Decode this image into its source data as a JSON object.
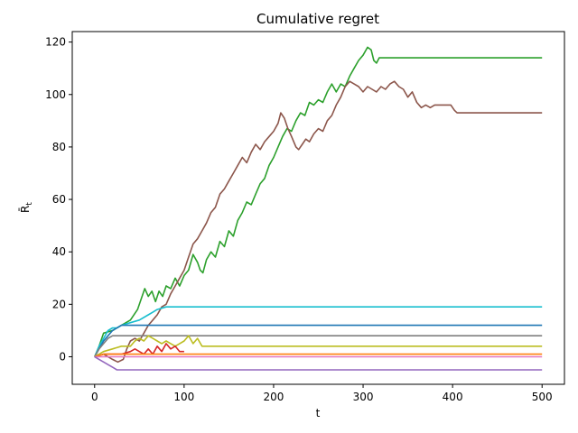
{
  "chart_data": {
    "type": "line",
    "title": "Cumulative regret",
    "xlabel": "t",
    "ylabel": "R̄",
    "ylabel_sub": "t",
    "xlim": [
      -25,
      525
    ],
    "ylim": [
      -10.5,
      124
    ],
    "xticks": [
      0,
      100,
      200,
      300,
      400,
      500
    ],
    "yticks": [
      0,
      20,
      40,
      60,
      80,
      100,
      120
    ],
    "grid": false,
    "series": [
      {
        "color": "#2ca02c",
        "points": [
          [
            0,
            0
          ],
          [
            5,
            4
          ],
          [
            10,
            9
          ],
          [
            20,
            10
          ],
          [
            30,
            12
          ],
          [
            40,
            14
          ],
          [
            48,
            18
          ],
          [
            52,
            22
          ],
          [
            56,
            26
          ],
          [
            60,
            23
          ],
          [
            64,
            25
          ],
          [
            68,
            21
          ],
          [
            72,
            25
          ],
          [
            76,
            23
          ],
          [
            80,
            27
          ],
          [
            85,
            26
          ],
          [
            90,
            30
          ],
          [
            95,
            27
          ],
          [
            100,
            31
          ],
          [
            105,
            33
          ],
          [
            110,
            39
          ],
          [
            115,
            36
          ],
          [
            118,
            33
          ],
          [
            121,
            32
          ],
          [
            125,
            37
          ],
          [
            130,
            40
          ],
          [
            135,
            38
          ],
          [
            140,
            44
          ],
          [
            145,
            42
          ],
          [
            150,
            48
          ],
          [
            155,
            46
          ],
          [
            160,
            52
          ],
          [
            165,
            55
          ],
          [
            170,
            59
          ],
          [
            175,
            58
          ],
          [
            180,
            62
          ],
          [
            185,
            66
          ],
          [
            190,
            68
          ],
          [
            195,
            73
          ],
          [
            200,
            76
          ],
          [
            205,
            80
          ],
          [
            210,
            84
          ],
          [
            215,
            87
          ],
          [
            220,
            86
          ],
          [
            225,
            90
          ],
          [
            230,
            93
          ],
          [
            235,
            92
          ],
          [
            240,
            97
          ],
          [
            245,
            96
          ],
          [
            250,
            98
          ],
          [
            255,
            97
          ],
          [
            260,
            101
          ],
          [
            265,
            104
          ],
          [
            270,
            101
          ],
          [
            275,
            104
          ],
          [
            280,
            103
          ],
          [
            285,
            107
          ],
          [
            290,
            110
          ],
          [
            295,
            113
          ],
          [
            300,
            115
          ],
          [
            305,
            118
          ],
          [
            309,
            117
          ],
          [
            312,
            113
          ],
          [
            315,
            112
          ],
          [
            318,
            114
          ],
          [
            330,
            114
          ],
          [
            400,
            114
          ],
          [
            500,
            114
          ]
        ]
      },
      {
        "color": "#8c564b",
        "points": [
          [
            0,
            0
          ],
          [
            10,
            1
          ],
          [
            20,
            -1
          ],
          [
            26,
            -2
          ],
          [
            32,
            -1
          ],
          [
            36,
            3
          ],
          [
            40,
            6
          ],
          [
            45,
            7
          ],
          [
            50,
            6
          ],
          [
            55,
            9
          ],
          [
            60,
            12
          ],
          [
            65,
            14
          ],
          [
            70,
            16
          ],
          [
            75,
            19
          ],
          [
            80,
            20
          ],
          [
            85,
            24
          ],
          [
            90,
            27
          ],
          [
            95,
            30
          ],
          [
            100,
            33
          ],
          [
            105,
            38
          ],
          [
            110,
            43
          ],
          [
            115,
            45
          ],
          [
            120,
            48
          ],
          [
            125,
            51
          ],
          [
            130,
            55
          ],
          [
            135,
            57
          ],
          [
            140,
            62
          ],
          [
            145,
            64
          ],
          [
            150,
            67
          ],
          [
            155,
            70
          ],
          [
            160,
            73
          ],
          [
            165,
            76
          ],
          [
            170,
            74
          ],
          [
            175,
            78
          ],
          [
            180,
            81
          ],
          [
            185,
            79
          ],
          [
            190,
            82
          ],
          [
            195,
            84
          ],
          [
            200,
            86
          ],
          [
            205,
            89
          ],
          [
            208,
            93
          ],
          [
            212,
            91
          ],
          [
            216,
            87
          ],
          [
            220,
            84
          ],
          [
            225,
            80
          ],
          [
            228,
            79
          ],
          [
            232,
            81
          ],
          [
            236,
            83
          ],
          [
            240,
            82
          ],
          [
            245,
            85
          ],
          [
            250,
            87
          ],
          [
            255,
            86
          ],
          [
            260,
            90
          ],
          [
            265,
            92
          ],
          [
            270,
            96
          ],
          [
            275,
            99
          ],
          [
            280,
            103
          ],
          [
            285,
            105
          ],
          [
            290,
            104
          ],
          [
            295,
            103
          ],
          [
            300,
            101
          ],
          [
            305,
            103
          ],
          [
            310,
            102
          ],
          [
            315,
            101
          ],
          [
            320,
            103
          ],
          [
            325,
            102
          ],
          [
            330,
            104
          ],
          [
            335,
            105
          ],
          [
            340,
            103
          ],
          [
            345,
            102
          ],
          [
            350,
            99
          ],
          [
            355,
            101
          ],
          [
            360,
            97
          ],
          [
            365,
            95
          ],
          [
            370,
            96
          ],
          [
            375,
            95
          ],
          [
            380,
            96
          ],
          [
            390,
            96
          ],
          [
            398,
            96
          ],
          [
            402,
            94
          ],
          [
            405,
            93
          ],
          [
            410,
            93
          ],
          [
            450,
            93
          ],
          [
            500,
            93
          ]
        ]
      },
      {
        "color": "#17becf",
        "points": [
          [
            0,
            0
          ],
          [
            5,
            4
          ],
          [
            10,
            7
          ],
          [
            15,
            10
          ],
          [
            20,
            11
          ],
          [
            25,
            11
          ],
          [
            30,
            12
          ],
          [
            40,
            13
          ],
          [
            50,
            14
          ],
          [
            60,
            16
          ],
          [
            65,
            17
          ],
          [
            70,
            18
          ],
          [
            80,
            19
          ],
          [
            100,
            19
          ],
          [
            300,
            19
          ],
          [
            500,
            19
          ]
        ]
      },
      {
        "color": "#1f77b4",
        "points": [
          [
            0,
            0
          ],
          [
            5,
            3
          ],
          [
            10,
            6
          ],
          [
            15,
            8
          ],
          [
            20,
            10
          ],
          [
            30,
            12
          ],
          [
            60,
            12
          ],
          [
            500,
            12
          ]
        ]
      },
      {
        "color": "#7f7f7f",
        "points": [
          [
            0,
            0
          ],
          [
            5,
            3
          ],
          [
            10,
            5
          ],
          [
            15,
            7
          ],
          [
            20,
            8
          ],
          [
            500,
            8
          ]
        ]
      },
      {
        "color": "#bcbd22",
        "points": [
          [
            0,
            0
          ],
          [
            10,
            2
          ],
          [
            20,
            3
          ],
          [
            30,
            4
          ],
          [
            40,
            4
          ],
          [
            45,
            6
          ],
          [
            50,
            7
          ],
          [
            55,
            6
          ],
          [
            60,
            8
          ],
          [
            65,
            7
          ],
          [
            70,
            6
          ],
          [
            75,
            5
          ],
          [
            80,
            6
          ],
          [
            85,
            5
          ],
          [
            90,
            4
          ],
          [
            95,
            5
          ],
          [
            100,
            6
          ],
          [
            105,
            8
          ],
          [
            110,
            5
          ],
          [
            115,
            7
          ],
          [
            120,
            4
          ],
          [
            500,
            4
          ]
        ]
      },
      {
        "color": "#d62728",
        "points": [
          [
            0,
            0
          ],
          [
            10,
            1
          ],
          [
            20,
            1
          ],
          [
            30,
            1
          ],
          [
            40,
            2
          ],
          [
            45,
            3
          ],
          [
            50,
            2
          ],
          [
            55,
            1
          ],
          [
            60,
            3
          ],
          [
            65,
            1
          ],
          [
            70,
            4
          ],
          [
            75,
            2
          ],
          [
            80,
            5
          ],
          [
            85,
            3
          ],
          [
            90,
            4
          ],
          [
            95,
            2
          ],
          [
            100,
            2
          ]
        ]
      },
      {
        "color": "#ff7f0e",
        "points": [
          [
            0,
            0
          ],
          [
            10,
            1
          ],
          [
            20,
            1
          ],
          [
            500,
            1
          ]
        ]
      },
      {
        "color": "#e377c2",
        "points": [
          [
            0,
            0
          ],
          [
            10,
            0
          ],
          [
            500,
            0
          ]
        ]
      },
      {
        "color": "#9467bd",
        "points": [
          [
            0,
            0
          ],
          [
            5,
            -1
          ],
          [
            10,
            -2
          ],
          [
            15,
            -3
          ],
          [
            20,
            -4
          ],
          [
            25,
            -5
          ],
          [
            500,
            -5
          ]
        ]
      }
    ]
  }
}
